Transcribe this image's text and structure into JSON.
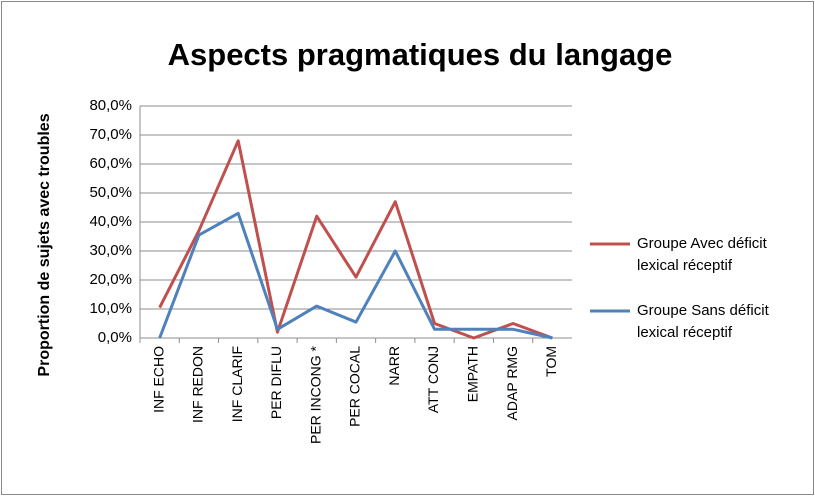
{
  "chart_data": {
    "type": "line",
    "title": "Aspects pragmatiques du langage",
    "y_label": "Proportion de sujets avec troubles",
    "categories": [
      "INF ECHO",
      "INF REDON",
      "INF CLARIF",
      "PER DIFLU",
      "PER INCONG *",
      "PER COCAL",
      "NARR",
      "ATT CONJ",
      "EMPATH",
      "ADAP RMG",
      "TOM"
    ],
    "series": [
      {
        "name": "Groupe Avec déficit lexical réceptif",
        "color": "#c0504d",
        "values": [
          10.5,
          37,
          68,
          2,
          42,
          21,
          47,
          5,
          0,
          5,
          0
        ]
      },
      {
        "name": "Groupe Sans déficit lexical réceptif",
        "color": "#4f81bd",
        "values": [
          0,
          35.5,
          43,
          3,
          11,
          5.5,
          30,
          3,
          3,
          3,
          0
        ]
      }
    ],
    "ylim": [
      0,
      80
    ],
    "yticks": [
      {
        "value": 0,
        "label": "0,0%"
      },
      {
        "value": 10,
        "label": "10,0%"
      },
      {
        "value": 20,
        "label": "20,0%"
      },
      {
        "value": 30,
        "label": "30,0%"
      },
      {
        "value": 40,
        "label": "40,0%"
      },
      {
        "value": 50,
        "label": "50,0%"
      },
      {
        "value": 60,
        "label": "60,0%"
      },
      {
        "value": 70,
        "label": "70,0%"
      },
      {
        "value": 80,
        "label": "80,0%"
      }
    ],
    "grid": true,
    "legend": "right"
  }
}
